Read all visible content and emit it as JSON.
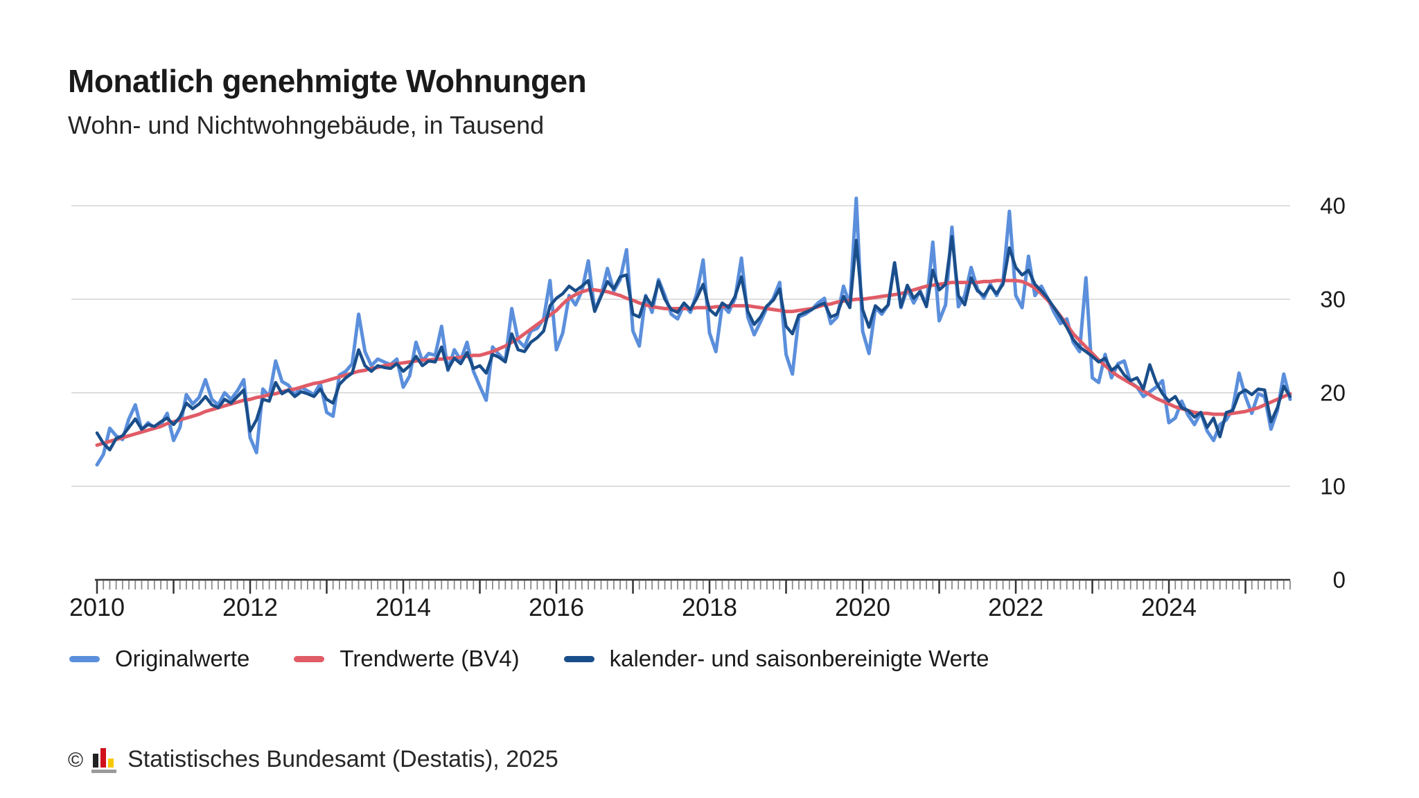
{
  "header": {
    "title": "Monatlich genehmigte Wohnungen",
    "subtitle": "Wohn- und Nichtwohngebäude, in Tausend"
  },
  "footer": {
    "copyright": "©",
    "credit": "Statistisches Bundesamt (Destatis), 2025"
  },
  "chart_data": {
    "type": "line",
    "title": "Monatlich genehmigte Wohnungen",
    "subtitle": "Wohn- und Nichtwohngebäude, in Tausend",
    "unit": "Tausend",
    "frequency": "monthly",
    "x_start": "2010-01",
    "x_end": "2025-08",
    "x_tick_years": [
      2010,
      2012,
      2014,
      2016,
      2018,
      2020,
      2022,
      2024
    ],
    "y_ticks": [
      0,
      10,
      20,
      30,
      40
    ],
    "y_axis": {
      "min": 0,
      "max": 40,
      "side": "right"
    },
    "grid": "horizontal",
    "legend_position": "bottom",
    "series": [
      {
        "name": "Originalwerte",
        "color": "#5b8fdc",
        "values": [
          12.3,
          13.4,
          16.2,
          15.4,
          15.0,
          17.2,
          18.7,
          16.0,
          16.8,
          16.2,
          16.6,
          17.8,
          14.9,
          16.3,
          19.8,
          18.8,
          19.5,
          21.4,
          19.3,
          18.7,
          20.0,
          19.3,
          20.2,
          21.4,
          15.2,
          13.6,
          20.4,
          19.6,
          23.4,
          21.2,
          20.8,
          19.8,
          20.6,
          20.2,
          19.8,
          21.0,
          17.9,
          17.5,
          21.9,
          22.3,
          23.1,
          28.4,
          24.4,
          22.9,
          23.6,
          23.3,
          23.0,
          23.6,
          20.6,
          21.8,
          25.4,
          23.4,
          24.2,
          24.0,
          27.1,
          22.4,
          24.6,
          23.5,
          25.4,
          22.3,
          20.7,
          19.2,
          24.9,
          24.1,
          23.4,
          29.0,
          25.6,
          24.9,
          26.6,
          26.9,
          27.9,
          32.0,
          24.6,
          26.4,
          30.4,
          29.4,
          30.9,
          34.1,
          28.8,
          30.4,
          33.3,
          30.9,
          32.1,
          35.3,
          26.6,
          25.0,
          30.4,
          28.6,
          32.1,
          30.4,
          28.4,
          27.9,
          29.4,
          28.6,
          30.6,
          34.2,
          26.4,
          24.4,
          29.4,
          28.6,
          30.1,
          34.4,
          28.1,
          26.2,
          27.6,
          29.1,
          30.1,
          31.8,
          24.1,
          22.0,
          28.1,
          28.4,
          28.9,
          29.6,
          30.1,
          27.4,
          28.1,
          31.4,
          29.4,
          40.8,
          26.6,
          24.2,
          29.1,
          28.4,
          29.4,
          33.9,
          29.1,
          31.1,
          29.6,
          30.9,
          29.4,
          36.1,
          27.7,
          29.4,
          37.7,
          29.2,
          30.4,
          33.4,
          31.1,
          30.1,
          31.6,
          30.4,
          31.9,
          39.4,
          30.4,
          29.1,
          34.6,
          30.4,
          31.4,
          30.1,
          28.6,
          27.4,
          27.9,
          25.4,
          24.4,
          32.3,
          21.6,
          21.1,
          24.1,
          21.6,
          23.1,
          23.4,
          21.1,
          20.6,
          19.6,
          20.1,
          20.6,
          21.3,
          16.8,
          17.3,
          19.1,
          17.6,
          16.6,
          17.9,
          15.9,
          14.9,
          16.6,
          17.1,
          18.3,
          22.1,
          19.6,
          17.8,
          19.9,
          19.6,
          16.1,
          18.1,
          22.0,
          19.3
        ]
      },
      {
        "name": "Trendwerte (BV4)",
        "color": "#e05c67",
        "values": [
          14.4,
          14.6,
          14.8,
          15.0,
          15.2,
          15.4,
          15.6,
          15.8,
          16.0,
          16.2,
          16.4,
          16.7,
          16.9,
          17.1,
          17.3,
          17.5,
          17.7,
          18.0,
          18.2,
          18.4,
          18.6,
          18.8,
          19.0,
          19.2,
          19.3,
          19.5,
          19.6,
          19.8,
          19.9,
          20.1,
          20.3,
          20.4,
          20.6,
          20.8,
          21.0,
          21.1,
          21.3,
          21.5,
          21.7,
          21.9,
          22.1,
          22.3,
          22.4,
          22.6,
          22.7,
          22.9,
          23.0,
          23.1,
          23.2,
          23.3,
          23.4,
          23.5,
          23.5,
          23.6,
          23.6,
          23.7,
          23.7,
          23.8,
          23.9,
          24.0,
          24.0,
          24.2,
          24.4,
          24.7,
          25.0,
          25.4,
          25.8,
          26.3,
          26.8,
          27.3,
          27.8,
          28.3,
          28.8,
          29.5,
          30.1,
          30.5,
          30.8,
          31.0,
          31.0,
          30.9,
          30.8,
          30.6,
          30.4,
          30.1,
          29.9,
          29.6,
          29.4,
          29.2,
          29.1,
          29.0,
          29.0,
          29.0,
          29.0,
          29.0,
          29.1,
          29.1,
          29.1,
          29.2,
          29.2,
          29.3,
          29.3,
          29.3,
          29.3,
          29.2,
          29.1,
          29.0,
          28.9,
          28.8,
          28.7,
          28.7,
          28.8,
          28.9,
          29.0,
          29.2,
          29.4,
          29.5,
          29.7,
          29.8,
          29.9,
          30.0,
          30.0,
          30.1,
          30.2,
          30.3,
          30.4,
          30.5,
          30.6,
          30.8,
          31.0,
          31.2,
          31.4,
          31.5,
          31.6,
          31.7,
          31.8,
          31.8,
          31.8,
          31.8,
          31.8,
          31.9,
          31.9,
          32.0,
          32.0,
          32.0,
          32.0,
          31.9,
          31.6,
          31.2,
          30.6,
          29.9,
          29.1,
          28.2,
          27.3,
          26.3,
          25.6,
          24.9,
          24.2,
          23.5,
          22.9,
          22.3,
          21.8,
          21.4,
          21.0,
          20.6,
          20.2,
          19.8,
          19.4,
          19.1,
          18.8,
          18.5,
          18.3,
          18.1,
          17.9,
          17.8,
          17.8,
          17.7,
          17.7,
          17.7,
          17.8,
          17.9,
          18.0,
          18.2,
          18.4,
          18.7,
          19.0,
          19.3,
          19.6,
          19.9
        ]
      },
      {
        "name": "kalender- und saisonbereinigte Werte",
        "color": "#1a4e8a",
        "values": [
          15.7,
          14.6,
          13.9,
          15.1,
          15.4,
          16.3,
          17.2,
          16.1,
          16.6,
          16.4,
          16.9,
          17.3,
          16.6,
          17.4,
          18.9,
          18.3,
          18.8,
          19.6,
          18.7,
          18.4,
          19.3,
          18.9,
          19.6,
          20.3,
          15.9,
          17.1,
          19.3,
          19.1,
          21.1,
          19.9,
          20.3,
          19.6,
          20.1,
          19.9,
          19.6,
          20.4,
          19.3,
          18.9,
          20.9,
          21.6,
          22.1,
          24.6,
          22.9,
          22.3,
          22.9,
          22.7,
          22.6,
          23.1,
          22.3,
          22.9,
          23.9,
          22.9,
          23.4,
          23.3,
          24.9,
          22.5,
          23.7,
          23.1,
          24.3,
          22.6,
          22.9,
          22.1,
          24.1,
          23.8,
          23.3,
          26.3,
          24.6,
          24.4,
          25.4,
          25.9,
          26.6,
          29.3,
          30.1,
          30.6,
          31.4,
          30.9,
          31.4,
          32.0,
          28.7,
          30.3,
          31.9,
          31.1,
          32.4,
          32.6,
          28.4,
          28.1,
          30.3,
          29.3,
          31.9,
          30.0,
          28.9,
          28.6,
          29.6,
          28.9,
          30.1,
          31.6,
          28.9,
          28.3,
          29.6,
          29.1,
          30.3,
          32.4,
          28.7,
          27.3,
          28.1,
          29.3,
          29.9,
          31.1,
          27.1,
          26.3,
          28.3,
          28.6,
          28.9,
          29.3,
          29.6,
          28.1,
          28.4,
          30.3,
          29.1,
          36.3,
          28.9,
          27.0,
          29.3,
          28.7,
          29.4,
          33.9,
          29.2,
          31.5,
          30.1,
          30.8,
          29.2,
          33.1,
          31.0,
          31.6,
          36.7,
          30.4,
          29.4,
          32.3,
          30.9,
          30.4,
          31.4,
          30.6,
          31.6,
          35.5,
          33.4,
          32.6,
          33.1,
          31.6,
          30.9,
          30.1,
          29.1,
          28.1,
          27.0,
          25.7,
          24.9,
          24.4,
          23.9,
          23.3,
          23.7,
          22.4,
          22.9,
          21.9,
          21.3,
          21.6,
          20.4,
          23.0,
          21.1,
          19.9,
          19.1,
          19.6,
          18.4,
          18.1,
          17.4,
          17.9,
          16.3,
          17.3,
          15.3,
          17.9,
          18.1,
          19.9,
          20.3,
          19.8,
          20.4,
          20.3,
          16.9,
          18.4,
          20.7,
          19.6
        ]
      }
    ]
  }
}
